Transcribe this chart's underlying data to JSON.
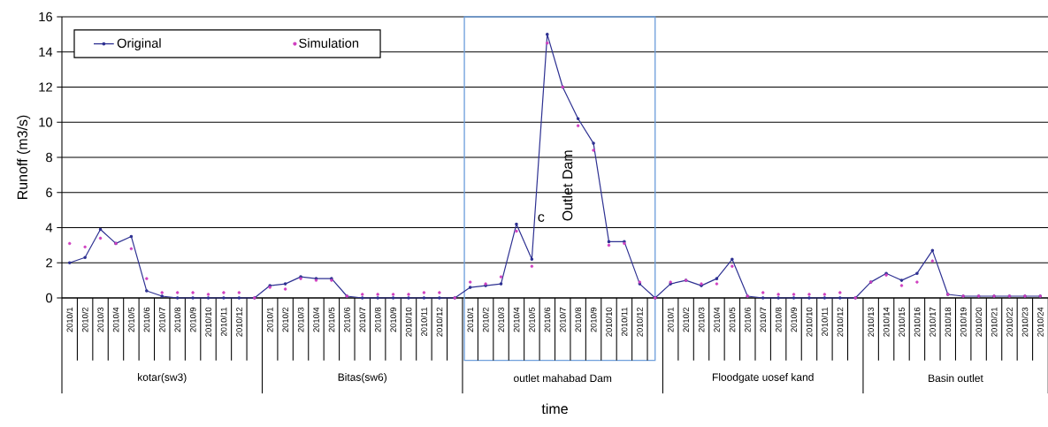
{
  "chart_data": {
    "type": "line",
    "xlabel": "time",
    "ylabel": "Runoff (m3/s)",
    "categories": [
      "2010/1",
      "2010/2",
      "2010/3",
      "2010/4",
      "2010/5",
      "2010/6",
      "2010/7",
      "2010/8",
      "2010/9",
      "2010/10",
      "2010/11",
      "2010/12",
      null,
      "2010/1",
      "2010/2",
      "2010/3",
      "2010/4",
      "2010/5",
      "2010/6",
      "2010/7",
      "2010/8",
      "2010/9",
      "2010/10",
      "2010/11",
      "2010/12",
      null,
      "2010/1",
      "2010/2",
      "2010/3",
      "2010/4",
      "2010/5",
      "2010/6",
      "2010/7",
      "2010/8",
      "2010/9",
      "2010/10",
      "2010/11",
      "2010/12",
      null,
      "2010/1",
      "2010/2",
      "2010/3",
      "2010/4",
      "2010/5",
      "2010/6",
      "2010/7",
      "2010/8",
      "2010/9",
      "2010/10",
      "2010/11",
      "2010/12",
      null,
      "2010/13",
      "2010/14",
      "2010/15",
      "2010/16",
      "2010/17",
      "2010/18",
      "2010/19",
      "2010/20",
      "2010/21",
      "2010/22",
      "2010/23",
      "2010/24"
    ],
    "series": [
      {
        "name": "Original",
        "color": "#2e3192",
        "values": [
          2.0,
          2.3,
          3.9,
          3.1,
          3.5,
          0.4,
          0.1,
          0,
          0,
          0,
          0,
          0,
          0,
          0.7,
          0.8,
          1.2,
          1.1,
          1.1,
          0.1,
          0,
          0,
          0,
          0,
          0,
          0,
          0,
          0.6,
          0.7,
          0.8,
          4.2,
          2.2,
          15.0,
          12.0,
          10.2,
          8.8,
          3.2,
          3.2,
          0.8,
          0,
          0.8,
          1.0,
          0.7,
          1.1,
          2.2,
          0.1,
          0,
          0,
          0,
          0,
          0,
          0,
          0,
          0.9,
          1.4,
          1.0,
          1.4,
          2.7,
          0.2,
          0.1,
          0.1,
          0.1,
          0.1,
          0.1,
          0.1
        ]
      },
      {
        "name": "Simulation",
        "type": "scatter",
        "color": "#d040c0",
        "values": [
          3.1,
          2.9,
          3.4,
          3.1,
          2.8,
          1.1,
          0.3,
          0.3,
          0.3,
          0.2,
          0.3,
          0.3,
          0,
          0.6,
          0.5,
          1.1,
          1.0,
          1.0,
          0.1,
          0.2,
          0.2,
          0.2,
          0.2,
          0.3,
          0.3,
          0,
          0.9,
          0.8,
          1.2,
          3.8,
          1.8,
          14.5,
          12.0,
          9.8,
          8.4,
          3.0,
          3.1,
          0.9,
          0,
          0.9,
          1.0,
          0.8,
          0.8,
          1.8,
          0.1,
          0.3,
          0.2,
          0.2,
          0.2,
          0.2,
          0.3,
          0,
          0.9,
          1.3,
          0.7,
          0.9,
          2.1,
          0.2,
          0.1,
          0.1,
          0.1,
          0.1,
          0.1,
          0.1
        ]
      }
    ],
    "ylim": [
      0,
      16
    ],
    "yticks": [
      0,
      2,
      4,
      6,
      8,
      10,
      12,
      14,
      16
    ],
    "grid": "y",
    "legend": "top left",
    "marker": "circle",
    "annotations": [
      "c",
      "Outlet Dam",
      "kotar(sw3)",
      "Bitas(sw6)",
      "outlet mahabad Dam",
      "Floodgate uosef kand",
      "Basin outlet"
    ]
  }
}
